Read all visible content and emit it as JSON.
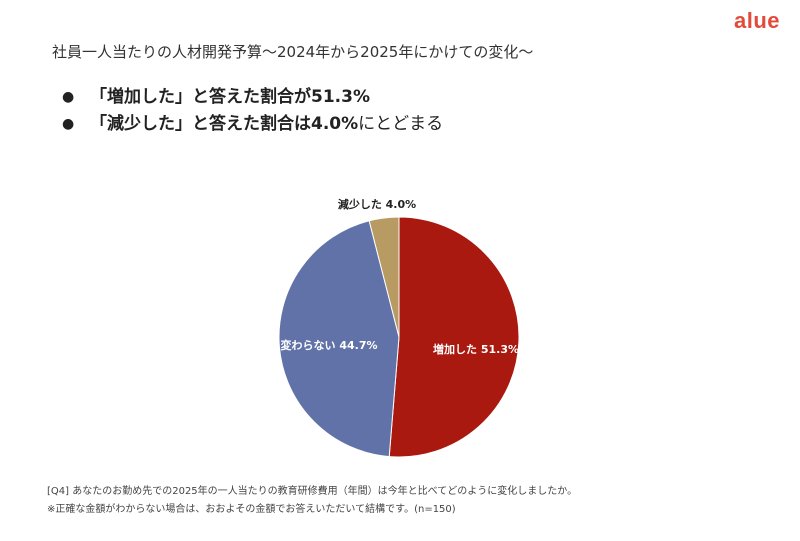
{
  "brand": {
    "logo_text": "alue",
    "accent": "#e34a3a"
  },
  "header": {
    "title": "社員一人当たりの人材開発予算～2024年から2025年にかけての変化～"
  },
  "bullets": [
    {
      "bold": "「増加した」と答えた割合が51.3%",
      "normal": ""
    },
    {
      "bold": "「減少した」と答えた割合は4.0%",
      "normal": "にとどまる"
    }
  ],
  "chart_data": {
    "type": "pie",
    "slices": [
      {
        "label": "増加した",
        "value": 51.3,
        "display": "増加した 51.3%",
        "color": "#a9190f"
      },
      {
        "label": "変わらない",
        "value": 44.7,
        "display": "変わらない 44.7%",
        "color": "#6172a8"
      },
      {
        "label": "減少した",
        "value": 4.0,
        "display": "減少した 4.0%",
        "color": "#b79b62"
      }
    ]
  },
  "footnotes": [
    "[Q4] あなたのお勤め先での2025年の一人当たりの教育研修費用（年間）は今年と比べてどのように変化しましたか。",
    "※正確な金額がわからない場合は、おおよその金額でお答えいただいて結構です。(n=150)"
  ]
}
